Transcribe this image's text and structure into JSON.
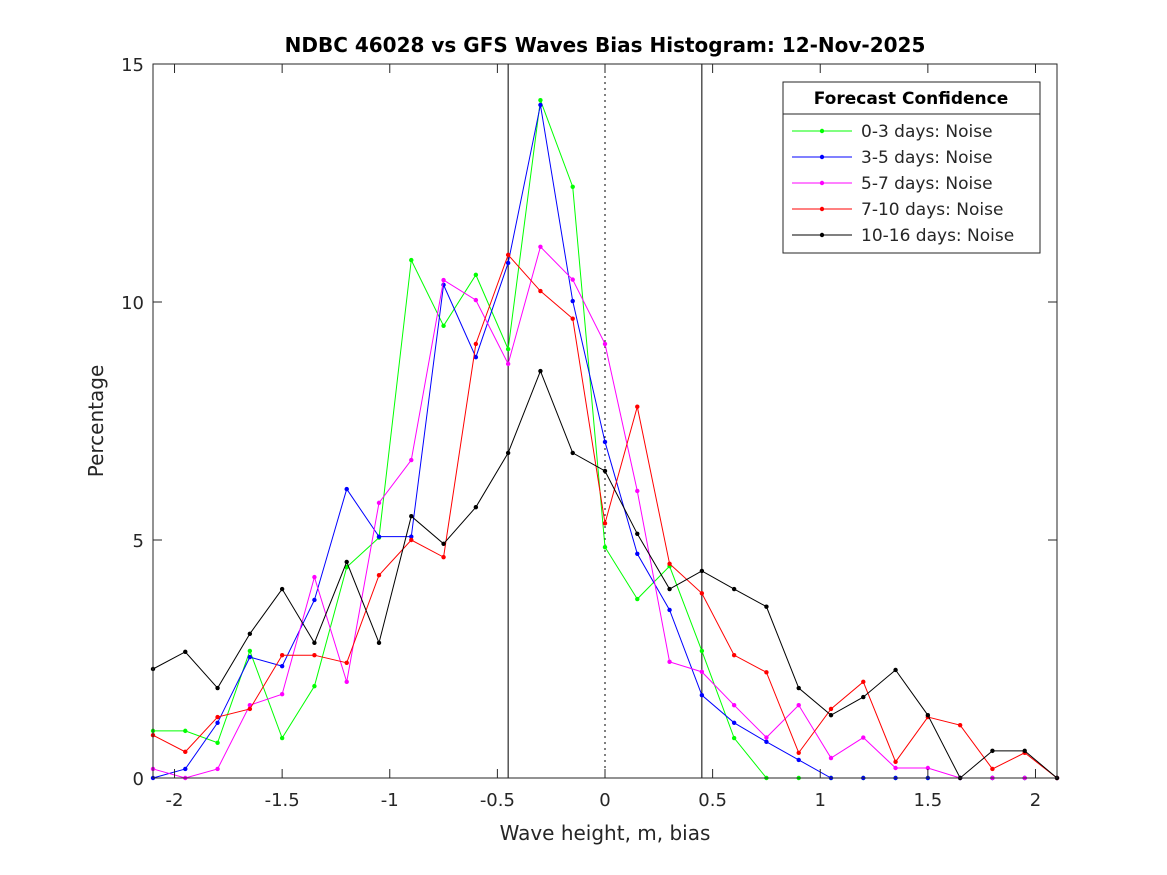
{
  "chart_data": {
    "type": "line",
    "title": "NDBC 46028 vs GFS Waves Bias Histogram: 12-Nov-2025",
    "xlabel": "Wave height, m, bias",
    "ylabel": "Percentage",
    "xlim": [
      -2.1,
      2.1
    ],
    "ylim": [
      0,
      15
    ],
    "xticks": [
      -2,
      -1.5,
      -1,
      -0.5,
      0,
      0.5,
      1,
      1.5,
      2
    ],
    "xtick_labels": [
      "-2",
      "-1.5",
      "-1",
      "-0.5",
      "0",
      "0.5",
      "1",
      "1.5",
      "2"
    ],
    "yticks": [
      0,
      5,
      10,
      15
    ],
    "ytick_labels": [
      "0",
      "5",
      "10",
      "15"
    ],
    "grid": false,
    "reference_lines": [
      {
        "x": -0.45,
        "style": "solid"
      },
      {
        "x": 0,
        "style": "dotted"
      },
      {
        "x": 0.45,
        "style": "solid"
      }
    ],
    "legend": {
      "title": "Forecast Confidence",
      "placement": "top-right"
    },
    "x": [
      -2.1,
      -1.95,
      -1.8,
      -1.65,
      -1.5,
      -1.35,
      -1.2,
      -1.05,
      -0.9,
      -0.75,
      -0.6,
      -0.45,
      -0.3,
      -0.15,
      0,
      0.15,
      0.3,
      0.45,
      0.6,
      0.75,
      0.9,
      1.05,
      1.2,
      1.35,
      1.5,
      1.65,
      1.8,
      1.95,
      2.1
    ],
    "series": [
      {
        "name": "0-3 days: Noise",
        "color": "#00ff00",
        "values": [
          0.99,
          0.99,
          0.74,
          2.67,
          0.84,
          1.93,
          4.43,
          5.05,
          10.88,
          9.5,
          10.57,
          9.01,
          14.24,
          12.42,
          4.85,
          3.76,
          4.45,
          2.67,
          0.84,
          0,
          0,
          0,
          0,
          0,
          0,
          0,
          0,
          0,
          0
        ]
      },
      {
        "name": "3-5 days: Noise",
        "color": "#0000ff",
        "values": [
          0,
          0.19,
          1.16,
          2.54,
          2.35,
          3.74,
          6.07,
          5.07,
          5.07,
          10.36,
          8.84,
          10.82,
          14.14,
          10.02,
          7.06,
          4.71,
          3.53,
          1.74,
          1.16,
          0.76,
          0.38,
          0,
          0,
          0,
          0,
          0,
          0,
          0,
          0
        ]
      },
      {
        "name": "5-7 days: Noise",
        "color": "#ff00ff",
        "values": [
          0.19,
          0,
          0.19,
          1.53,
          1.76,
          4.22,
          2.02,
          5.78,
          6.68,
          10.46,
          10.04,
          8.7,
          11.16,
          10.47,
          9.12,
          6.03,
          2.44,
          2.23,
          1.53,
          0.85,
          1.53,
          0.42,
          0.85,
          0.21,
          0.21,
          0,
          0,
          0,
          0
        ]
      },
      {
        "name": "7-10 days: Noise",
        "color": "#ff0000",
        "values": [
          0.9,
          0.55,
          1.28,
          1.45,
          2.58,
          2.58,
          2.42,
          4.26,
          5.0,
          4.64,
          9.12,
          10.99,
          10.23,
          9.65,
          5.35,
          7.8,
          4.5,
          3.88,
          2.58,
          2.22,
          0.53,
          1.45,
          2.02,
          0.34,
          1.28,
          1.11,
          0.19,
          0.53,
          0
        ]
      },
      {
        "name": "10-16 days: Noise",
        "color": "#000000",
        "values": [
          2.29,
          2.65,
          1.89,
          3.03,
          3.97,
          2.84,
          4.54,
          2.84,
          5.5,
          4.92,
          5.69,
          6.83,
          8.55,
          6.83,
          6.45,
          5.13,
          3.97,
          4.35,
          3.97,
          3.6,
          1.89,
          1.32,
          1.7,
          2.27,
          1.32,
          0,
          0.57,
          0.57,
          0
        ]
      }
    ]
  }
}
